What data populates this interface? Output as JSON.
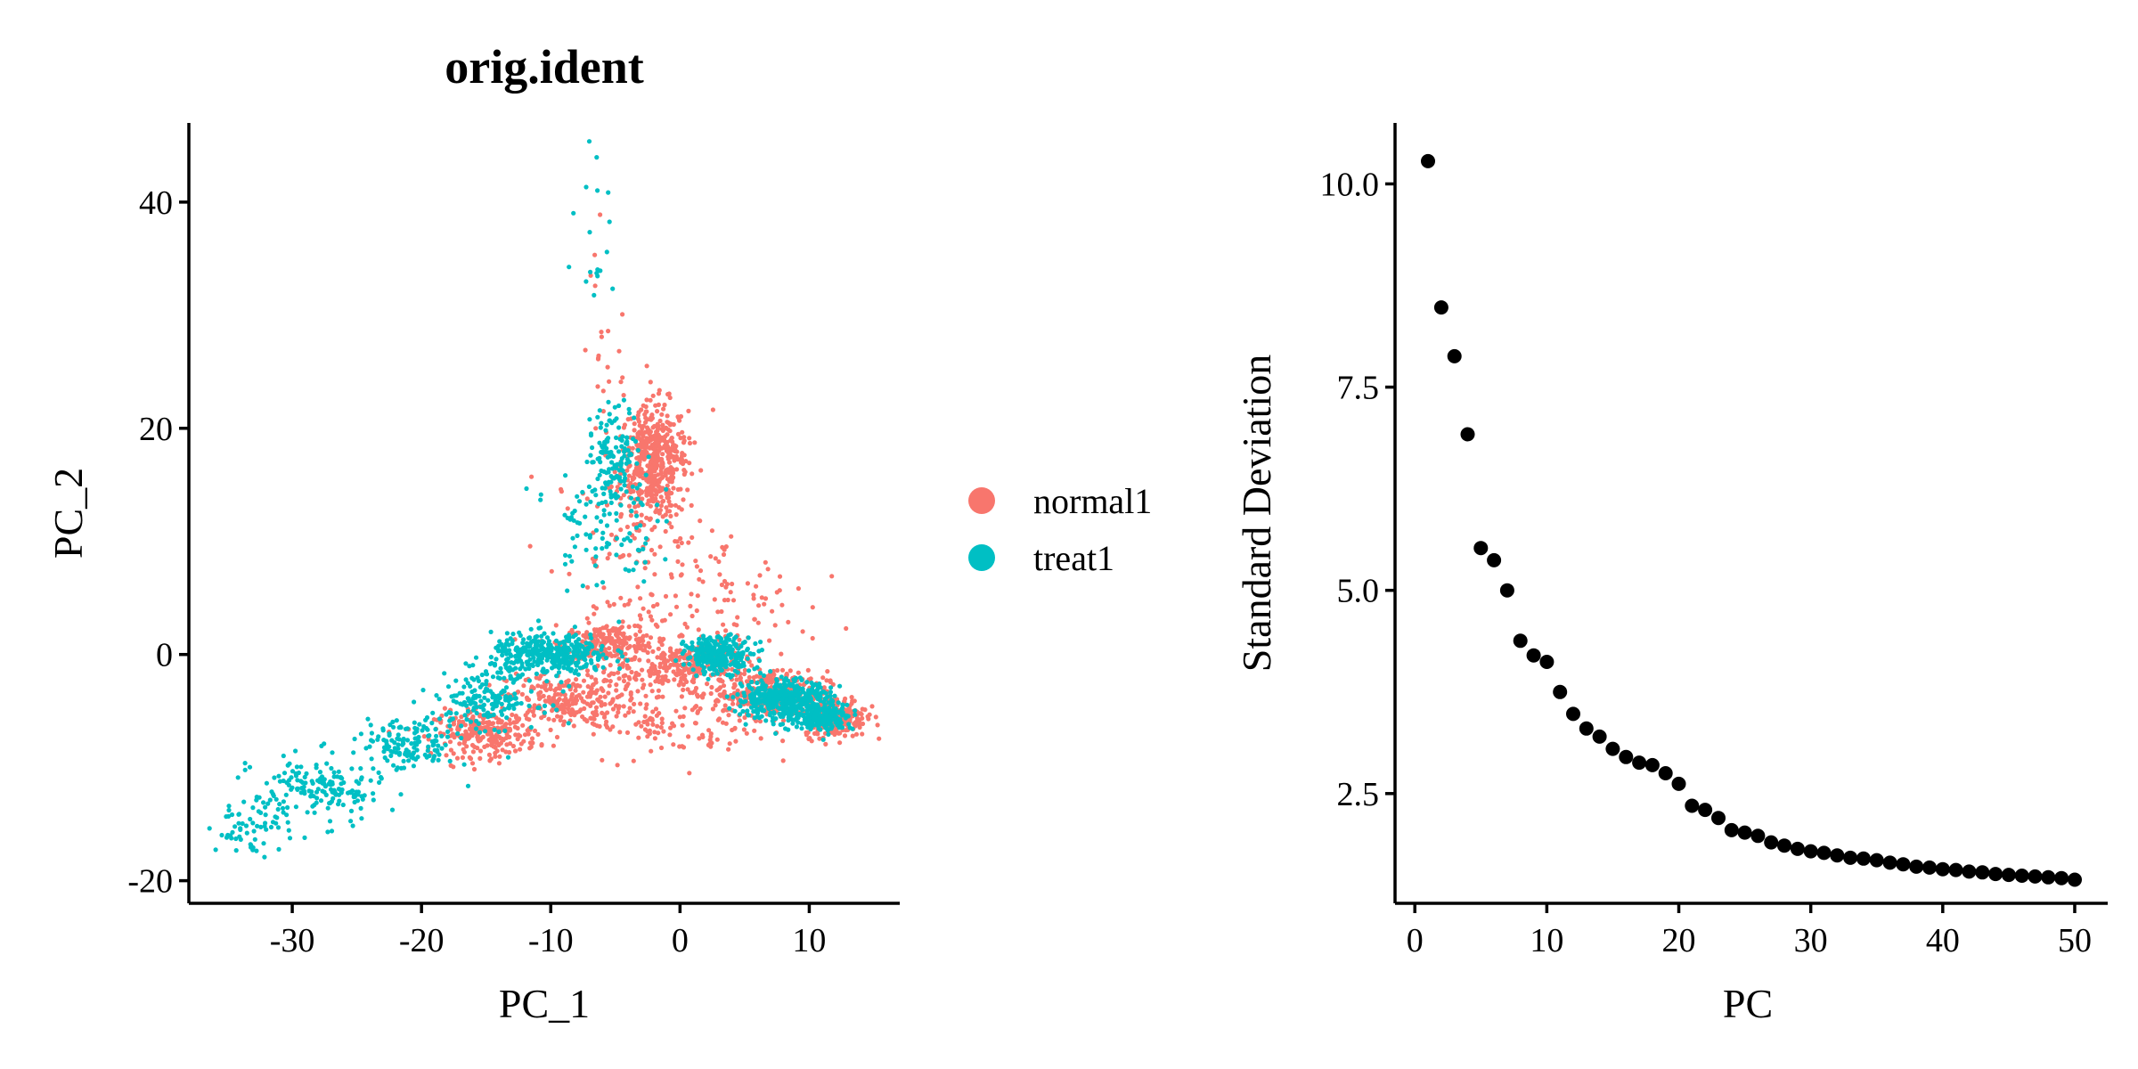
{
  "chart_data": [
    {
      "type": "scatter",
      "title": "orig.ident",
      "xlabel": "PC_1",
      "ylabel": "PC_2",
      "xlim": [
        -38,
        17
      ],
      "ylim": [
        -22,
        47
      ],
      "xticks": [
        -30,
        -20,
        -10,
        0,
        10
      ],
      "xtick_labels": [
        "-30",
        "-20",
        "-10",
        "0",
        "10"
      ],
      "yticks": [
        -20,
        0,
        20,
        40
      ],
      "ytick_labels": [
        "-20",
        "0",
        "20",
        "40"
      ],
      "grid": false,
      "legend": "right",
      "legend_entries": [
        "normal1",
        "treat1"
      ],
      "series": [
        {
          "name": "normal1",
          "color": "#F8766D",
          "clusters": [
            {
              "cx": -2,
              "cy": 17,
              "sx": 1.3,
              "sy": 2.6,
              "n": 520
            },
            {
              "cx": -5.5,
              "cy": 1,
              "sx": 1.8,
              "sy": 0.8,
              "n": 220
            },
            {
              "cx": -9,
              "cy": -4,
              "sx": 2.2,
              "sy": 1.2,
              "n": 220
            },
            {
              "cx": -15,
              "cy": -7,
              "sx": 2.0,
              "sy": 1.0,
              "n": 260
            },
            {
              "cx": 1,
              "cy": -1,
              "sx": 2.2,
              "sy": 1.0,
              "n": 220
            },
            {
              "cx": 7,
              "cy": -3.5,
              "sx": 2.2,
              "sy": 1.0,
              "n": 320
            },
            {
              "cx": 12,
              "cy": -5.5,
              "sx": 1.2,
              "sy": 0.9,
              "n": 260
            },
            {
              "cx": -3,
              "cy": 8,
              "sx": 3.5,
              "sy": 5.0,
              "n": 130
            },
            {
              "cx": 3,
              "cy": 4,
              "sx": 3.5,
              "sy": 4.0,
              "n": 90
            },
            {
              "cx": -4,
              "cy": -4,
              "sx": 2.5,
              "sy": 2.5,
              "n": 120
            },
            {
              "cx": 2,
              "cy": -6,
              "sx": 2.5,
              "sy": 2.0,
              "n": 70
            },
            {
              "cx": -6,
              "cy": 28,
              "sx": 1.0,
              "sy": 5.0,
              "n": 20
            }
          ]
        },
        {
          "name": "treat1",
          "color": "#00BFC4",
          "clusters": [
            {
              "cx": -5,
              "cy": 18,
              "sx": 1.0,
              "sy": 2.0,
              "n": 120
            },
            {
              "cx": -6,
              "cy": 12,
              "sx": 2.0,
              "sy": 3.0,
              "n": 110
            },
            {
              "cx": -10,
              "cy": 0,
              "sx": 2.3,
              "sy": 0.9,
              "n": 380
            },
            {
              "cx": -15,
              "cy": -4,
              "sx": 2.0,
              "sy": 1.2,
              "n": 170
            },
            {
              "cx": -21,
              "cy": -8,
              "sx": 1.8,
              "sy": 1.2,
              "n": 140
            },
            {
              "cx": -28,
              "cy": -12,
              "sx": 2.5,
              "sy": 1.5,
              "n": 170
            },
            {
              "cx": -33,
              "cy": -15.5,
              "sx": 1.5,
              "sy": 1.0,
              "n": 60
            },
            {
              "cx": 3,
              "cy": 0,
              "sx": 1.3,
              "sy": 0.8,
              "n": 260
            },
            {
              "cx": 8,
              "cy": -4,
              "sx": 1.8,
              "sy": 0.9,
              "n": 450
            },
            {
              "cx": 11,
              "cy": -5.5,
              "sx": 1.2,
              "sy": 0.6,
              "n": 200
            },
            {
              "cx": -6,
              "cy": 38,
              "sx": 1.2,
              "sy": 4.5,
              "n": 20
            }
          ]
        }
      ]
    },
    {
      "type": "scatter",
      "title": "",
      "xlabel": "PC",
      "ylabel": "Standard Deviation",
      "xlim": [
        -1.5,
        52.5
      ],
      "ylim": [
        1.15,
        10.75
      ],
      "xticks": [
        0,
        10,
        20,
        30,
        40,
        50
      ],
      "xtick_labels": [
        "0",
        "10",
        "20",
        "30",
        "40",
        "50"
      ],
      "yticks": [
        2.5,
        5.0,
        7.5,
        10.0
      ],
      "ytick_labels": [
        "2.5",
        "5.0",
        "7.5",
        "10.0"
      ],
      "grid": false,
      "legend": "none",
      "color": "#000000",
      "x": [
        1,
        2,
        3,
        4,
        5,
        6,
        7,
        8,
        9,
        10,
        11,
        12,
        13,
        14,
        15,
        16,
        17,
        18,
        19,
        20,
        21,
        22,
        23,
        24,
        25,
        26,
        27,
        28,
        29,
        30,
        31,
        32,
        33,
        34,
        35,
        36,
        37,
        38,
        39,
        40,
        41,
        42,
        43,
        44,
        45,
        46,
        47,
        48,
        49,
        50
      ],
      "y": [
        10.28,
        8.48,
        7.88,
        6.92,
        5.52,
        5.37,
        5.0,
        4.38,
        4.2,
        4.12,
        3.75,
        3.48,
        3.3,
        3.2,
        3.05,
        2.95,
        2.88,
        2.85,
        2.75,
        2.62,
        2.35,
        2.3,
        2.2,
        2.05,
        2.02,
        1.98,
        1.9,
        1.86,
        1.82,
        1.79,
        1.77,
        1.74,
        1.71,
        1.7,
        1.68,
        1.65,
        1.63,
        1.6,
        1.59,
        1.57,
        1.56,
        1.54,
        1.53,
        1.51,
        1.5,
        1.49,
        1.48,
        1.47,
        1.46,
        1.44
      ]
    }
  ]
}
